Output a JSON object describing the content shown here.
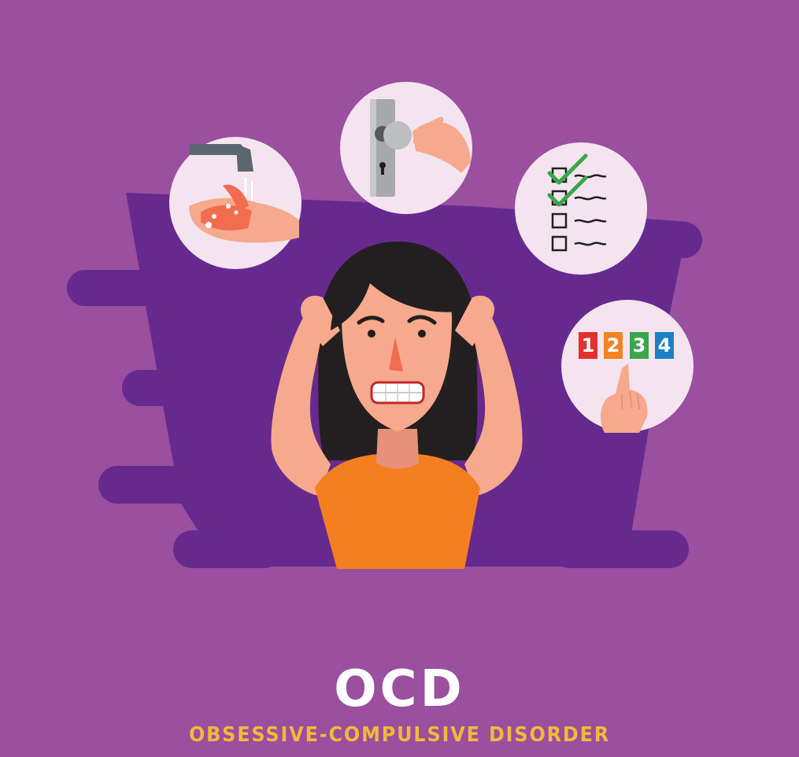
{
  "title": "OCD",
  "subtitle": "OBSESSIVE-COMPULSIVE DISORDER",
  "counting_digits": [
    "1",
    "2",
    "3",
    "4"
  ],
  "colors": {
    "background": "#9a4f9f",
    "backdrop": "#662a8f",
    "circle": "#f4e4f0",
    "shirt": "#f47f20",
    "skin": "#f6a98c",
    "hair": "#231f20",
    "subtitle": "#f3b83a",
    "digit_colors": [
      "#e2312f",
      "#f48221",
      "#3aa549",
      "#1d7fc4"
    ]
  },
  "icons": [
    "handwashing-icon",
    "door-handle-icon",
    "checklist-icon",
    "counting-icon"
  ]
}
